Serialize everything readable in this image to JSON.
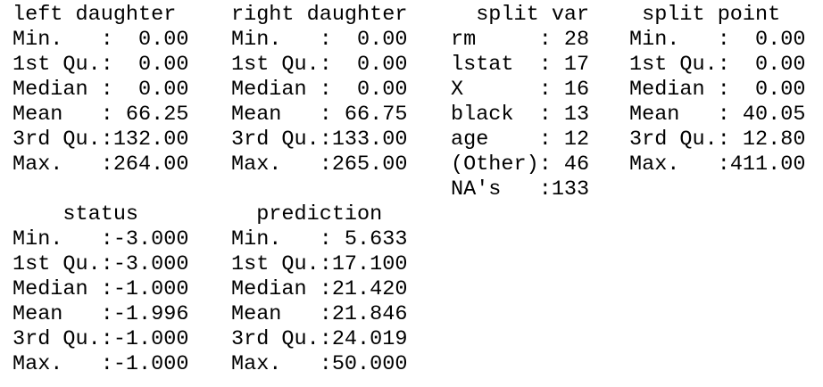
{
  "blocks": [
    {
      "columns": [
        {
          "header": "left daughter",
          "rows": [
            "Min.   :  0.00",
            "1st Qu.:  0.00",
            "Median :  0.00",
            "Mean   : 66.25",
            "3rd Qu.:132.00",
            "Max.   :264.00"
          ]
        },
        {
          "header": "right daughter",
          "rows": [
            "Min.   :  0.00",
            "1st Qu.:  0.00",
            "Median :  0.00",
            "Mean   : 66.75",
            "3rd Qu.:133.00",
            "Max.   :265.00"
          ]
        },
        {
          "header": "split var",
          "rows": [
            "rm     : 28",
            "lstat  : 17",
            "X      : 16",
            "black  : 13",
            "age    : 12",
            "(Other): 46",
            "NA's   :133"
          ]
        },
        {
          "header": "split point",
          "rows": [
            "Min.   :  0.00",
            "1st Qu.:  0.00",
            "Median :  0.00",
            "Mean   : 40.05",
            "3rd Qu.: 12.80",
            "Max.   :411.00"
          ]
        }
      ]
    },
    {
      "columns": [
        {
          "header": "status",
          "rows": [
            "Min.   :-3.000",
            "1st Qu.:-3.000",
            "Median :-1.000",
            "Mean   :-1.996",
            "3rd Qu.:-1.000",
            "Max.   :-1.000"
          ]
        },
        {
          "header": "prediction",
          "rows": [
            "Min.   : 5.633",
            "1st Qu.:17.100",
            "Median :21.420",
            "Mean   :21.846",
            "3rd Qu.:24.019",
            "Max.   :50.000"
          ]
        }
      ]
    }
  ]
}
